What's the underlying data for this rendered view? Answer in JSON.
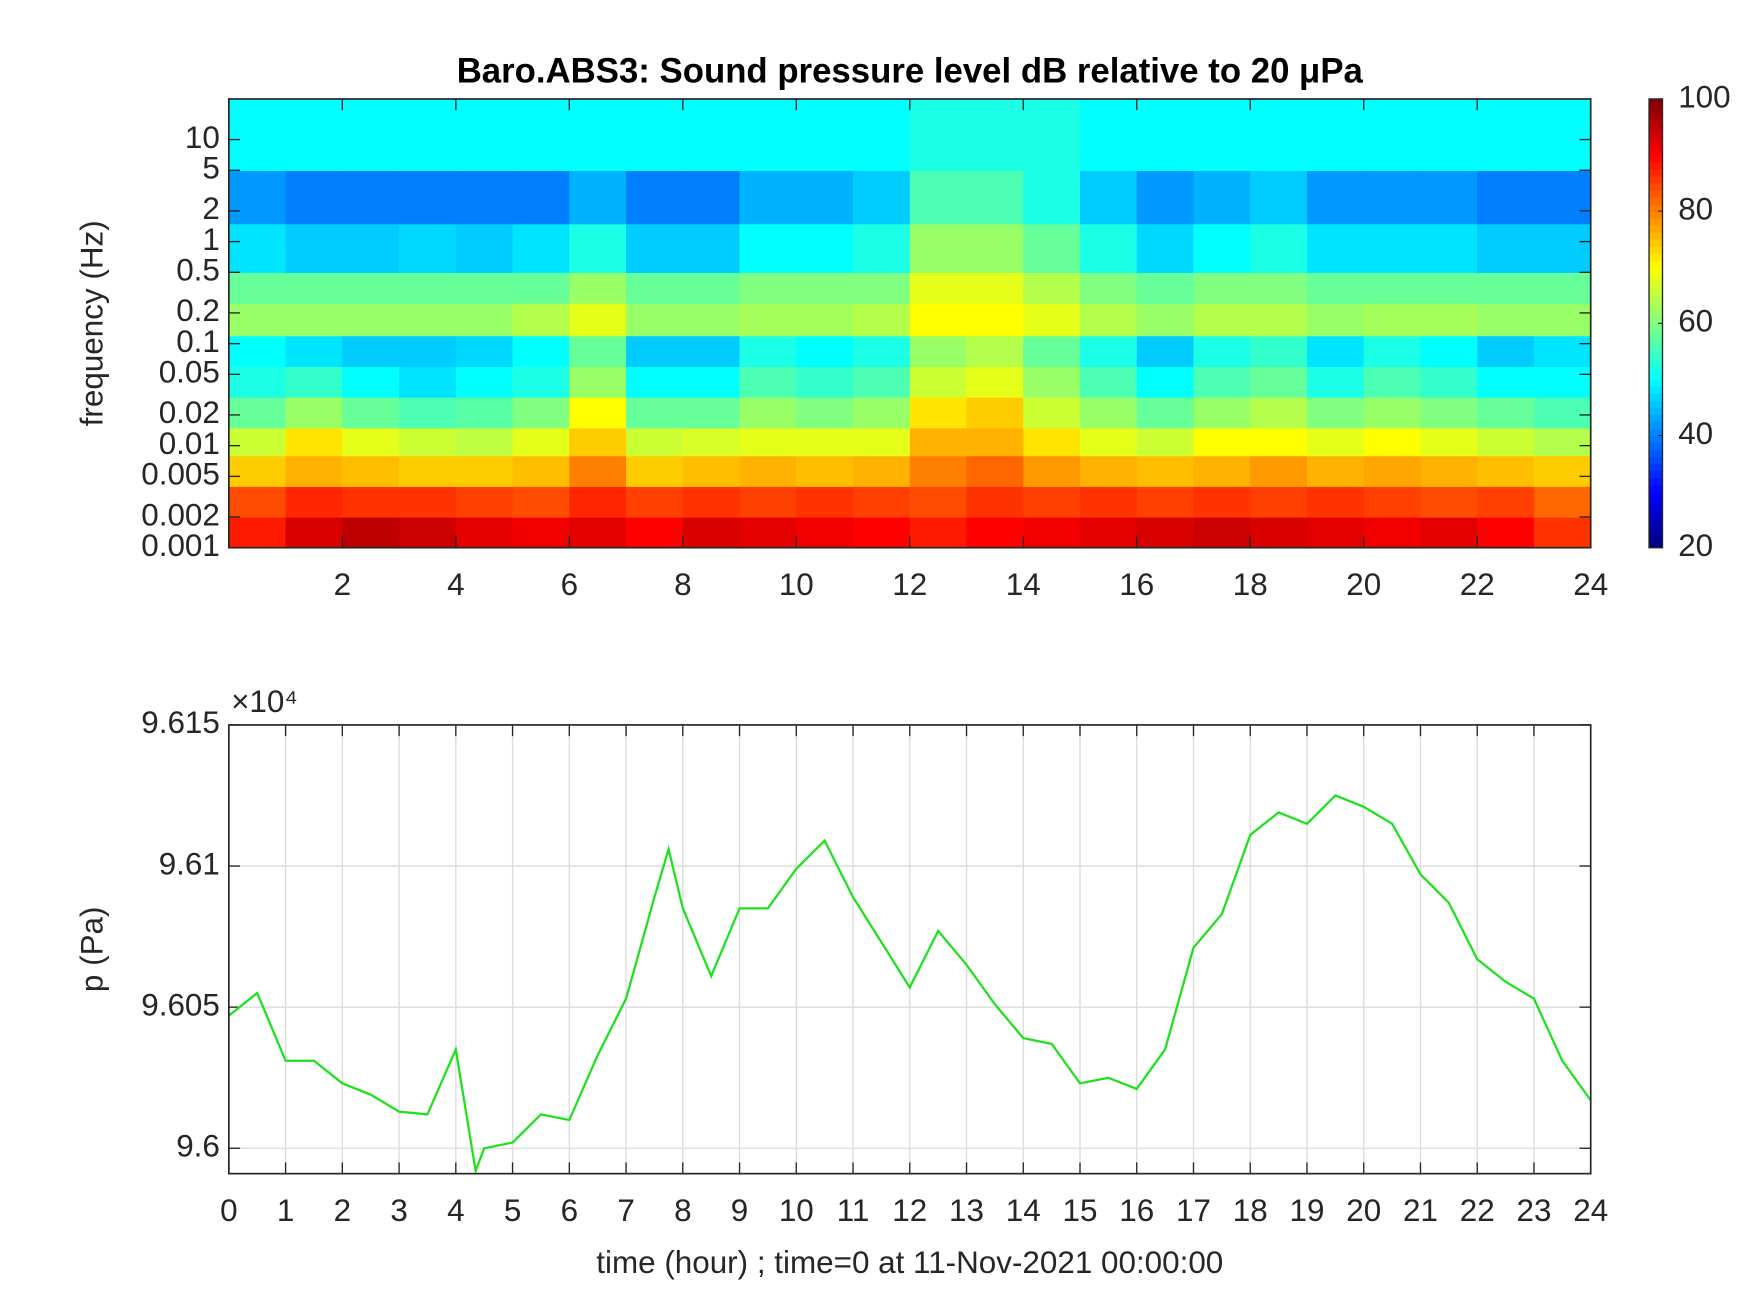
{
  "chart_data": [
    {
      "type": "heatmap",
      "title": "Baro.ABS3: Sound pressure level dB relative to 20 μPa",
      "ylabel": "frequency (Hz)",
      "x": [
        0,
        1,
        2,
        3,
        4,
        5,
        6,
        7,
        8,
        9,
        10,
        11,
        12,
        13,
        14,
        15,
        16,
        17,
        18,
        19,
        20,
        21,
        22,
        23,
        24
      ],
      "y": [
        0.001,
        0.002,
        0.004,
        0.008,
        0.015,
        0.03,
        0.06,
        0.12,
        0.25,
        0.5,
        1.5,
        5,
        25
      ],
      "z": [
        [
          88,
          93,
          95,
          94,
          92,
          91,
          92,
          90,
          93,
          92,
          91,
          90,
          88,
          90,
          91,
          92,
          93,
          94,
          93,
          92,
          91,
          92,
          90,
          86
        ],
        [
          84,
          87,
          86,
          86,
          85,
          84,
          87,
          85,
          86,
          85,
          86,
          85,
          84,
          86,
          85,
          86,
          85,
          86,
          85,
          86,
          85,
          84,
          85,
          82
        ],
        [
          74,
          76,
          75,
          74,
          74,
          75,
          80,
          74,
          75,
          76,
          75,
          76,
          80,
          82,
          78,
          76,
          75,
          76,
          78,
          76,
          77,
          76,
          75,
          74
        ],
        [
          66,
          72,
          68,
          66,
          65,
          68,
          74,
          66,
          67,
          68,
          68,
          68,
          76,
          76,
          72,
          68,
          66,
          70,
          70,
          68,
          70,
          68,
          66,
          64
        ],
        [
          58,
          62,
          58,
          56,
          57,
          60,
          70,
          58,
          58,
          62,
          60,
          62,
          72,
          74,
          66,
          62,
          58,
          62,
          64,
          60,
          62,
          60,
          58,
          56
        ],
        [
          52,
          54,
          50,
          48,
          50,
          52,
          62,
          50,
          50,
          56,
          54,
          56,
          66,
          68,
          62,
          56,
          50,
          56,
          58,
          52,
          56,
          54,
          50,
          50
        ],
        [
          50,
          48,
          46,
          46,
          47,
          50,
          58,
          46,
          46,
          52,
          50,
          52,
          62,
          64,
          58,
          52,
          46,
          52,
          54,
          48,
          52,
          50,
          46,
          48
        ],
        [
          62,
          62,
          62,
          62,
          62,
          64,
          68,
          62,
          62,
          63,
          63,
          64,
          70,
          70,
          68,
          64,
          62,
          64,
          64,
          62,
          63,
          63,
          62,
          62
        ],
        [
          58,
          58,
          58,
          58,
          58,
          58,
          62,
          58,
          58,
          60,
          60,
          60,
          68,
          68,
          64,
          60,
          58,
          60,
          60,
          58,
          58,
          58,
          58,
          58
        ],
        [
          48,
          46,
          46,
          47,
          46,
          48,
          52,
          46,
          46,
          50,
          50,
          52,
          62,
          62,
          58,
          52,
          47,
          50,
          52,
          48,
          48,
          48,
          46,
          46
        ],
        [
          42,
          40,
          40,
          40,
          40,
          40,
          44,
          40,
          40,
          44,
          44,
          46,
          56,
          56,
          52,
          46,
          42,
          44,
          46,
          42,
          42,
          42,
          40,
          40
        ],
        [
          50,
          50,
          50,
          50,
          50,
          50,
          50,
          50,
          50,
          50,
          50,
          50,
          52,
          52,
          52,
          50,
          50,
          50,
          50,
          50,
          50,
          50,
          50,
          50
        ]
      ],
      "xlim": [
        0,
        24
      ],
      "xticks": [
        2,
        4,
        6,
        8,
        10,
        12,
        14,
        16,
        18,
        20,
        22,
        24
      ],
      "ylim": [
        0.001,
        25
      ],
      "ylog": true,
      "yticks": [
        0.001,
        0.002,
        0.005,
        0.01,
        0.02,
        0.05,
        0.1,
        0.2,
        0.5,
        1,
        2,
        5,
        10
      ],
      "colormap": "jet",
      "colorbar": {
        "lim": [
          20,
          100
        ],
        "ticks": [
          20,
          40,
          60,
          80,
          100
        ]
      }
    },
    {
      "type": "line",
      "xlabel": "time (hour) ; time=0 at 11-Nov-2021 00:00:00",
      "ylabel": "p (Pa)",
      "y_exponent_label": "×10⁴",
      "x": [
        0,
        0.5,
        1,
        1.5,
        2,
        2.5,
        3,
        3.5,
        4,
        4.35,
        4.5,
        5,
        5.5,
        6,
        6.5,
        7,
        7.5,
        7.75,
        8,
        8.5,
        9,
        9.5,
        10,
        10.5,
        11,
        11.5,
        12,
        12.5,
        13,
        13.5,
        14,
        14.5,
        15,
        15.5,
        16,
        16.5,
        17,
        17.5,
        18,
        18.5,
        19,
        19.5,
        20,
        20.5,
        21,
        21.5,
        22,
        22.5,
        23,
        23.5,
        24
      ],
      "series": [
        {
          "color": "#1ee01e",
          "values": [
            96047,
            96055,
            96031,
            96031,
            96023,
            96019,
            96013,
            96012,
            96035,
            95992,
            96000,
            96002,
            96012,
            96010,
            96033,
            96053,
            96089,
            96106,
            96085,
            96061,
            96085,
            96085,
            96099,
            96109,
            96089,
            96073,
            96057,
            96077,
            96065,
            96051,
            96039,
            96037,
            96023,
            96025,
            96021,
            96035,
            96071,
            96083,
            96111,
            96119,
            96115,
            96125,
            96121,
            96115,
            96097,
            96087,
            96067,
            96059,
            96053,
            96031,
            96017
          ]
        }
      ],
      "xlim": [
        0,
        24
      ],
      "xticks": [
        0,
        1,
        2,
        3,
        4,
        5,
        6,
        7,
        8,
        9,
        10,
        11,
        12,
        13,
        14,
        15,
        16,
        17,
        18,
        19,
        20,
        21,
        22,
        23,
        24
      ],
      "ylim": [
        95991,
        96150
      ],
      "yticks": [
        {
          "value": 96000,
          "label": "9.6"
        },
        {
          "value": 96050,
          "label": "9.605"
        },
        {
          "value": 96100,
          "label": "9.61"
        },
        {
          "value": 96150,
          "label": "9.615"
        }
      ],
      "grid": true
    }
  ]
}
